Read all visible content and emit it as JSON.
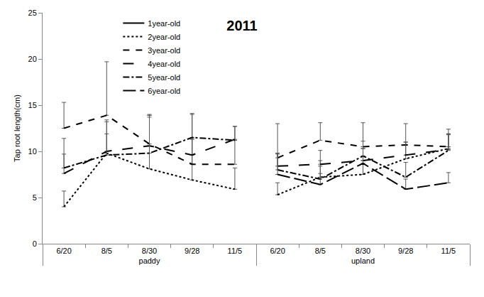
{
  "chart_data": {
    "type": "line",
    "title": "2011",
    "y_label": "Tap root length(cm)",
    "x_groups": [
      "paddy",
      "paddy",
      "paddy",
      "paddy",
      "paddy",
      "upland",
      "upland",
      "upland",
      "upland",
      "upland"
    ],
    "categories": [
      "6/20",
      "8/5",
      "8/30",
      "9/28",
      "11/5",
      "6/20",
      "8/5",
      "8/30",
      "9/28",
      "11/5"
    ],
    "ylim": [
      0,
      25
    ],
    "yticks": [
      0,
      5,
      10,
      15,
      20,
      25
    ],
    "grid": false,
    "legend": "upper left",
    "series": [
      {
        "name": "1year-old",
        "color": "#000000",
        "line_style": "solid",
        "values": [
          null,
          null,
          null,
          null,
          null,
          null,
          null,
          null,
          null,
          null
        ],
        "errors": [
          null,
          null,
          null,
          null,
          null,
          null,
          null,
          null,
          null,
          null
        ]
      },
      {
        "name": "2year-old",
        "color": "#000000",
        "line_style": "dot",
        "values": [
          4.0,
          9.8,
          8.1,
          6.9,
          5.9,
          5.3,
          7.2,
          7.5,
          9.2,
          10.3
        ],
        "errors": [
          1.7,
          2.1,
          5.6,
          4.4,
          2.3,
          1.3,
          1.8,
          1.5,
          1.8,
          1.6
        ]
      },
      {
        "name": "3year-old",
        "color": "#000000",
        "line_style": "dash",
        "values": [
          12.5,
          13.9,
          10.8,
          8.6,
          8.6,
          9.3,
          11.2,
          10.5,
          10.7,
          10.5
        ],
        "errors": [
          2.8,
          5.8,
          3.2,
          5.4,
          2.6,
          3.7,
          1.9,
          2.6,
          2.3,
          1.9
        ]
      },
      {
        "name": "4year-old",
        "color": "#000000",
        "line_style": "longdash",
        "values": [
          7.6,
          10.0,
          10.6,
          9.6,
          11.3,
          8.4,
          8.6,
          9.0,
          9.6,
          10.2
        ],
        "errors": [
          2.1,
          3.4,
          3.3,
          1.8,
          1.4,
          1.4,
          1.5,
          1.3,
          1.4,
          1.6
        ]
      },
      {
        "name": "5year-old",
        "color": "#000000",
        "line_style": "dashdot",
        "values": [
          8.2,
          9.6,
          9.8,
          11.5,
          11.2,
          8.0,
          7.0,
          9.5,
          7.2,
          10.1
        ],
        "errors": [
          3.2,
          3.6,
          4.1,
          2.6,
          1.5,
          1.8,
          1.4,
          1.6,
          1.6,
          1.8
        ]
      },
      {
        "name": "6year-old",
        "color": "#000000",
        "line_style": "longerdash",
        "values": [
          null,
          null,
          null,
          null,
          null,
          7.5,
          6.4,
          8.7,
          5.9,
          6.6
        ],
        "errors": [
          null,
          null,
          null,
          null,
          null,
          2.2,
          1.2,
          1.6,
          1.1,
          1.1
        ]
      }
    ]
  }
}
